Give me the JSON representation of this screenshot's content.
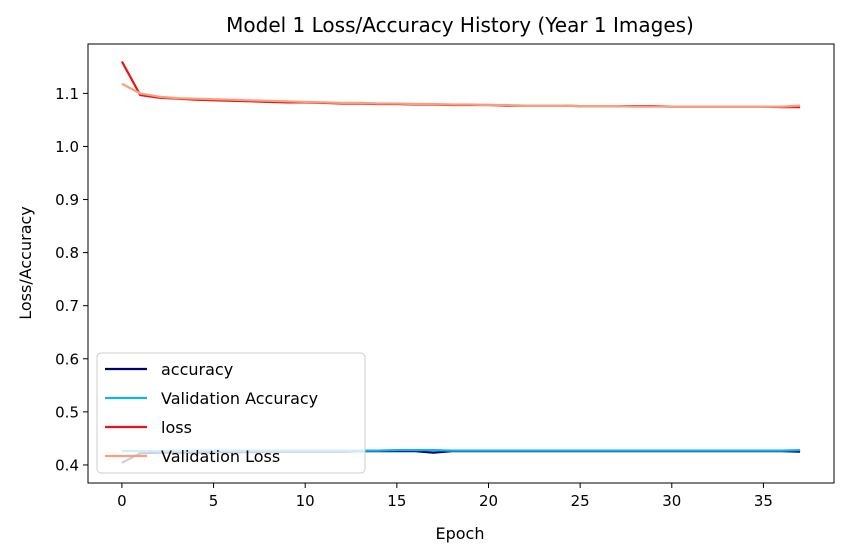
{
  "chart_data": {
    "type": "line",
    "title": "Model 1 Loss/Accuracy History (Year 1 Images)",
    "xlabel": "Epoch",
    "ylabel": "Loss/Accuracy",
    "xlim": [
      -1.85,
      38.85
    ],
    "ylim": [
      0.366,
      1.193
    ],
    "xticks": [
      0,
      5,
      10,
      15,
      20,
      25,
      30,
      35
    ],
    "yticks": [
      0.4,
      0.5,
      0.6,
      0.7,
      0.8,
      0.9,
      1.0,
      1.1
    ],
    "xtick_labels": [
      "0",
      "5",
      "10",
      "15",
      "20",
      "25",
      "30",
      "35"
    ],
    "ytick_labels": [
      "0.4",
      "0.5",
      "0.6",
      "0.7",
      "0.8",
      "0.9",
      "1.0",
      "1.1"
    ],
    "grid": false,
    "legend_position": "lower-left",
    "x": [
      0,
      1,
      2,
      3,
      4,
      5,
      6,
      7,
      8,
      9,
      10,
      11,
      12,
      13,
      14,
      15,
      16,
      17,
      18,
      19,
      20,
      21,
      22,
      23,
      24,
      25,
      26,
      27,
      28,
      29,
      30,
      31,
      32,
      33,
      34,
      35,
      36,
      37
    ],
    "series": [
      {
        "name": "accuracy",
        "color": "#00006e",
        "values": [
          0.404,
          0.422,
          0.423,
          0.423,
          0.423,
          0.424,
          0.424,
          0.424,
          0.425,
          0.425,
          0.425,
          0.425,
          0.425,
          0.426,
          0.426,
          0.426,
          0.426,
          0.423,
          0.426,
          0.426,
          0.426,
          0.426,
          0.426,
          0.426,
          0.426,
          0.426,
          0.426,
          0.426,
          0.426,
          0.426,
          0.426,
          0.426,
          0.426,
          0.426,
          0.426,
          0.426,
          0.426,
          0.425
        ]
      },
      {
        "name": "Validation Accuracy",
        "color": "#15b0f0",
        "values": [
          0.426,
          0.426,
          0.426,
          0.427,
          0.427,
          0.427,
          0.427,
          0.427,
          0.427,
          0.427,
          0.427,
          0.427,
          0.427,
          0.427,
          0.427,
          0.428,
          0.428,
          0.428,
          0.427,
          0.427,
          0.427,
          0.427,
          0.427,
          0.427,
          0.427,
          0.427,
          0.427,
          0.427,
          0.427,
          0.427,
          0.427,
          0.427,
          0.427,
          0.427,
          0.427,
          0.427,
          0.427,
          0.428
        ]
      },
      {
        "name": "loss",
        "color": "#ee1111",
        "values": [
          1.16,
          1.097,
          1.092,
          1.09,
          1.088,
          1.087,
          1.086,
          1.085,
          1.084,
          1.083,
          1.083,
          1.082,
          1.081,
          1.081,
          1.08,
          1.08,
          1.079,
          1.079,
          1.078,
          1.078,
          1.078,
          1.077,
          1.077,
          1.077,
          1.077,
          1.076,
          1.076,
          1.076,
          1.076,
          1.076,
          1.075,
          1.075,
          1.075,
          1.075,
          1.075,
          1.075,
          1.074,
          1.074
        ]
      },
      {
        "name": "Validation Loss",
        "color": "#f7a080",
        "values": [
          1.118,
          1.1,
          1.094,
          1.091,
          1.09,
          1.089,
          1.088,
          1.087,
          1.086,
          1.085,
          1.084,
          1.083,
          1.082,
          1.082,
          1.081,
          1.081,
          1.08,
          1.08,
          1.079,
          1.079,
          1.078,
          1.078,
          1.077,
          1.077,
          1.077,
          1.076,
          1.076,
          1.076,
          1.075,
          1.075,
          1.075,
          1.075,
          1.075,
          1.075,
          1.075,
          1.075,
          1.075,
          1.077
        ]
      }
    ]
  }
}
